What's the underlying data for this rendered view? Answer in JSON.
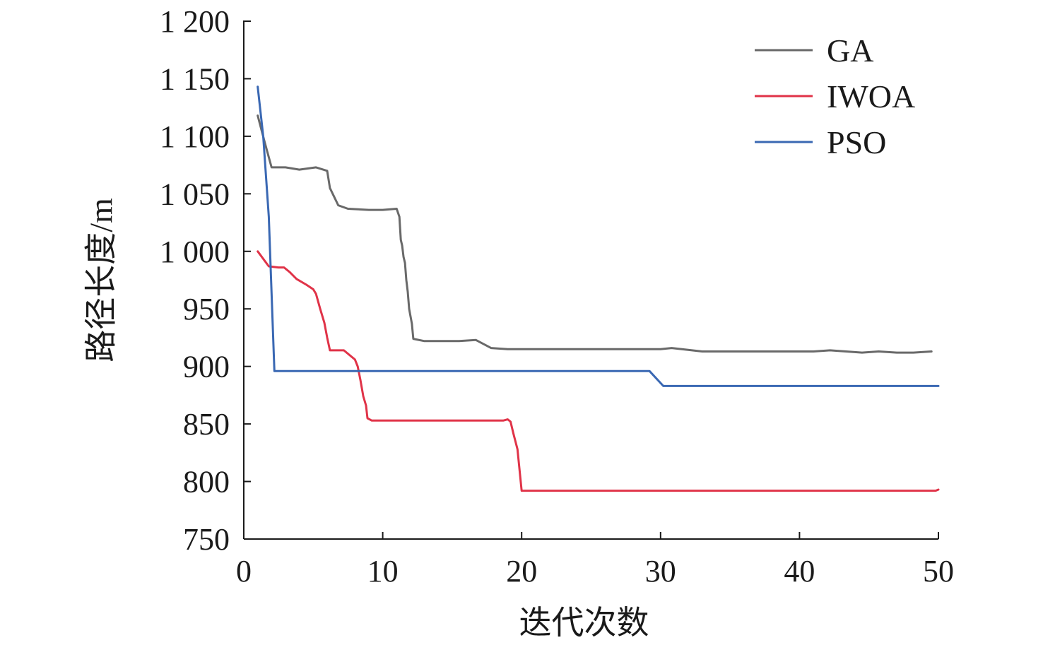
{
  "chart_data": {
    "type": "line",
    "xlabel": "迭代次数",
    "ylabel": "路径长度/m",
    "xlim": [
      0,
      50
    ],
    "ylim": [
      750,
      1200
    ],
    "xticks": [
      0,
      10,
      20,
      30,
      40,
      50
    ],
    "xtick_labels": [
      "0",
      "10",
      "20",
      "30",
      "40",
      "50"
    ],
    "yticks": [
      750,
      800,
      850,
      900,
      950,
      1000,
      1050,
      1100,
      1150,
      1200
    ],
    "ytick_labels": [
      "750",
      "800",
      "850",
      "900",
      "950",
      "1 000",
      "1 050",
      "1 100",
      "1 150",
      "1 200"
    ],
    "grid": false,
    "legend_position": "top-right",
    "series": [
      {
        "name": "GA",
        "color": "#696969",
        "points": [
          [
            1,
            1118
          ],
          [
            1.5,
            1095
          ],
          [
            2,
            1073
          ],
          [
            3,
            1073
          ],
          [
            4,
            1071
          ],
          [
            5.2,
            1073
          ],
          [
            6,
            1070
          ],
          [
            6.2,
            1055
          ],
          [
            6.8,
            1040
          ],
          [
            7.5,
            1037
          ],
          [
            9,
            1036
          ],
          [
            10,
            1036
          ],
          [
            11,
            1037
          ],
          [
            11.2,
            1030
          ],
          [
            11.3,
            1010
          ],
          [
            11.4,
            1005
          ],
          [
            11.5,
            995
          ],
          [
            11.6,
            990
          ],
          [
            11.7,
            975
          ],
          [
            11.8,
            965
          ],
          [
            11.9,
            950
          ],
          [
            12.1,
            937
          ],
          [
            12.2,
            924
          ],
          [
            13,
            922
          ],
          [
            14,
            922
          ],
          [
            15.5,
            922
          ],
          [
            16.7,
            923
          ],
          [
            17.8,
            916
          ],
          [
            19,
            915
          ],
          [
            20,
            915
          ],
          [
            25,
            915
          ],
          [
            30,
            915
          ],
          [
            30.8,
            916
          ],
          [
            33,
            913
          ],
          [
            35,
            913
          ],
          [
            38,
            913
          ],
          [
            41,
            913
          ],
          [
            42.2,
            914
          ],
          [
            44.5,
            912
          ],
          [
            45.7,
            913
          ],
          [
            47,
            912
          ],
          [
            48.2,
            912
          ],
          [
            49.5,
            913
          ]
        ]
      },
      {
        "name": "IWOA",
        "color": "#e03348",
        "points": [
          [
            1,
            1000
          ],
          [
            1.8,
            987
          ],
          [
            2.5,
            986
          ],
          [
            2.9,
            986
          ],
          [
            3.3,
            982
          ],
          [
            3.8,
            976
          ],
          [
            4.5,
            971
          ],
          [
            5,
            967
          ],
          [
            5.2,
            963
          ],
          [
            5.5,
            950
          ],
          [
            5.8,
            938
          ],
          [
            6,
            925
          ],
          [
            6.2,
            914
          ],
          [
            7.2,
            914
          ],
          [
            7.6,
            910
          ],
          [
            8,
            906
          ],
          [
            8.2,
            900
          ],
          [
            8.4,
            888
          ],
          [
            8.6,
            874
          ],
          [
            8.8,
            866
          ],
          [
            8.9,
            855
          ],
          [
            9.2,
            853
          ],
          [
            10,
            853
          ],
          [
            15,
            853
          ],
          [
            18.7,
            853
          ],
          [
            19,
            854
          ],
          [
            19.2,
            852
          ],
          [
            19.4,
            842
          ],
          [
            19.7,
            828
          ],
          [
            20,
            792
          ],
          [
            25,
            792
          ],
          [
            30,
            792
          ],
          [
            35,
            792
          ],
          [
            40,
            792
          ],
          [
            45,
            792
          ],
          [
            49.8,
            792
          ],
          [
            50,
            793
          ]
        ]
      },
      {
        "name": "PSO",
        "color": "#3a68b3",
        "points": [
          [
            1,
            1143
          ],
          [
            1.4,
            1100
          ],
          [
            1.8,
            1030
          ],
          [
            2.2,
            896
          ],
          [
            5,
            896
          ],
          [
            10,
            896
          ],
          [
            15,
            896
          ],
          [
            20,
            896
          ],
          [
            25,
            896
          ],
          [
            29.2,
            896
          ],
          [
            30.2,
            883
          ],
          [
            35,
            883
          ],
          [
            40,
            883
          ],
          [
            45,
            883
          ],
          [
            50,
            883
          ]
        ]
      }
    ]
  }
}
